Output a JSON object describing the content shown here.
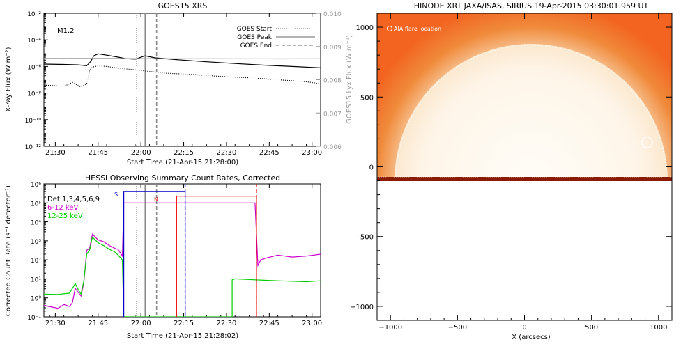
{
  "chart_data": [
    {
      "type": "line",
      "title": "GOES15 XRS",
      "xlabel": "Start Time (21-Apr-15 21:28:00)",
      "ylabel": "X-ray Flux (W m⁻²)",
      "ylabel_right": "GOES15 Lyx Flux (W m⁻²)",
      "x_ticks": [
        "21:30",
        "21:45",
        "22:00",
        "22:15",
        "22:30",
        "22:45",
        "23:00"
      ],
      "y_ticks": [
        "10⁻¹²",
        "10⁻¹⁰",
        "10⁻⁸",
        "10⁻⁶",
        "10⁻⁴",
        "10⁻²"
      ],
      "y_ticks_right": [
        "0.006",
        "0.007",
        "0.008",
        "0.009",
        "0.010"
      ],
      "xlim_min": [
        -2,
        95
      ],
      "ylim_log10": [
        -12,
        -2
      ],
      "annotation": "M1.2",
      "legend": [
        {
          "name": "GOES Start",
          "style": "dotted"
        },
        {
          "name": "GOES Peak",
          "style": "solid"
        },
        {
          "name": "GOES End",
          "style": "dashed"
        }
      ],
      "marker_lines_min": {
        "start": 30.5,
        "peak": 33.5,
        "end": 37.5
      },
      "series": [
        {
          "name": "",
          "color": "#000000",
          "x": [
            -2,
            5,
            10,
            13,
            14.5,
            15.5,
            17,
            20,
            24,
            27,
            30,
            33.5,
            37,
            45,
            55,
            65,
            75,
            85,
            95
          ],
          "log10_y": [
            -5.82,
            -5.85,
            -5.88,
            -5.95,
            -5.6,
            -5.2,
            -5.05,
            -5.15,
            -5.3,
            -5.42,
            -5.45,
            -5.2,
            -5.35,
            -5.5,
            -5.65,
            -5.78,
            -5.9,
            -6.0,
            -6.1
          ]
        },
        {
          "name": "",
          "color": "#000000",
          "dash": "1,2",
          "x": [
            -2,
            5,
            8,
            11,
            13,
            14,
            15,
            17,
            20,
            25,
            30,
            34,
            40,
            50,
            60,
            70,
            80,
            90,
            95
          ],
          "log10_y": [
            -7.4,
            -7.5,
            -7.2,
            -7.55,
            -7.3,
            -6.3,
            -6.05,
            -5.95,
            -6.0,
            -6.15,
            -6.25,
            -6.35,
            -6.5,
            -6.6,
            -6.75,
            -6.85,
            -7.0,
            -7.15,
            -7.3
          ]
        },
        {
          "name": "",
          "color": "#999999",
          "x": [
            -2,
            20,
            40,
            60,
            80,
            95
          ],
          "log10_y": [
            -5.4,
            -5.4,
            -5.42,
            -5.42,
            -5.43,
            -5.42
          ]
        }
      ]
    },
    {
      "type": "line",
      "title": "HESSI Observing Summary Count Rates, Corrected",
      "xlabel": "Start Time (21-Apr-15 21:28:02)",
      "ylabel": "Corrected Count Rate (s⁻¹ detector⁻¹)",
      "x_ticks": [
        "21:30",
        "21:45",
        "22:00",
        "22:15",
        "22:30",
        "22:45",
        "23:00"
      ],
      "y_ticks": [
        "10⁻¹",
        "10⁰",
        "10¹",
        "10²",
        "10³",
        "10⁴",
        "10⁵",
        "10⁶"
      ],
      "xlim_min": [
        -2,
        95
      ],
      "ylim_log10": [
        -1,
        6
      ],
      "legend": [
        {
          "name": "Det 1,3,4,5,6,9",
          "color": "#000000"
        },
        {
          "name": "6-12 keV",
          "color": "#cc00cc"
        },
        {
          "name": "12-25 keV",
          "color": "#00cc00"
        }
      ],
      "flags": [
        "S",
        "N"
      ],
      "series": [
        {
          "name": "6-12 keV",
          "color": "#cc00cc",
          "x": [
            -2,
            3,
            5,
            7,
            8,
            9,
            10,
            11,
            12,
            13,
            14,
            15,
            17,
            19,
            21,
            23,
            24,
            25.5,
            26,
            72,
            73,
            74,
            76,
            80,
            85,
            90,
            95
          ],
          "log10_y": [
            -0.4,
            -0.55,
            -0.35,
            -0.45,
            -0.25,
            0.5,
            0.3,
            0.1,
            0.8,
            2.5,
            2.6,
            3.35,
            3.05,
            2.95,
            2.75,
            2.6,
            2.55,
            2.2,
            5.0,
            5.0,
            1.7,
            2.0,
            2.1,
            2.25,
            2.15,
            2.2,
            2.3
          ]
        },
        {
          "name": "12-25 keV",
          "color": "#00cc00",
          "x": [
            -2,
            3,
            7,
            9,
            10,
            11,
            12,
            13,
            14,
            15,
            17,
            19,
            21,
            23,
            24,
            25.5,
            26,
            64,
            64,
            65,
            72,
            80,
            90,
            95
          ],
          "log10_y": [
            0.2,
            0.18,
            0.25,
            0.75,
            0.45,
            0.2,
            0.9,
            2.3,
            2.5,
            3.2,
            2.9,
            2.75,
            2.55,
            2.4,
            2.25,
            2.0,
            -1,
            -1,
            0.95,
            1.0,
            0.95,
            0.9,
            0.85,
            0.9
          ]
        },
        {
          "name": "",
          "color": "#0000cc",
          "x": [
            26,
            26,
            47.5,
            47.5
          ],
          "log10_y": [
            -1,
            5.6,
            5.6,
            -1
          ]
        },
        {
          "name": "",
          "color": "#ee0000",
          "x": [
            44.5,
            44.5,
            72.5,
            72.5
          ],
          "log10_y": [
            -1,
            5.35,
            5.35,
            -1
          ]
        }
      ],
      "marker_lines_min": {
        "start": 30.5,
        "peak": 33.5,
        "end": 37.5,
        "blue_dashed": 47.5,
        "red_dashed": 72.5
      }
    },
    {
      "type": "map",
      "title": "HINODE XRT JAXA/ISAS, SIRIUS 19-Apr-2015 03:30:01.959 UT",
      "xlabel": "X (arcsecs)",
      "x_ticks": [
        "−1000",
        "−500",
        "0",
        "500",
        "1000"
      ],
      "y_ticks": [
        "1000",
        "500",
        "0",
        "−500",
        "−1000"
      ],
      "xlim": [
        -1100,
        1100
      ],
      "ylim": [
        -1100,
        1100
      ],
      "image_data_ymin": -90,
      "solar_radius_arcsec": 955,
      "annotation": "AIA flare location",
      "flare_location": {
        "x": 915,
        "y": 175,
        "r": 40
      },
      "colors": {
        "sun_core": "#fffdf8",
        "sun_limb": "#fbe8cf",
        "corona": "#f08a3a",
        "edge": "#f26420",
        "data_edge": "#8a1a00"
      }
    }
  ]
}
